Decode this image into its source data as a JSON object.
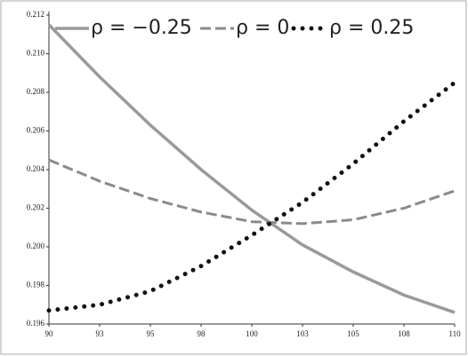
{
  "chart_data": {
    "type": "line",
    "x": [
      90,
      92.5,
      95,
      97.5,
      100,
      102.5,
      105,
      107.5,
      110
    ],
    "series": [
      {
        "name": "ρ = −0.25",
        "color": "#9a9a9a",
        "style": "solid",
        "values": [
          0.2115,
          0.2088,
          0.2063,
          0.204,
          0.2019,
          0.2001,
          0.1987,
          0.1975,
          0.1966
        ]
      },
      {
        "name": "ρ = 0",
        "color": "#8a8a8a",
        "style": "dashed",
        "values": [
          0.2045,
          0.2034,
          0.2025,
          0.2018,
          0.2013,
          0.2012,
          0.2014,
          0.202,
          0.2029
        ]
      },
      {
        "name": "ρ = 0.25",
        "color": "#111111",
        "style": "dotted",
        "values": [
          0.1967,
          0.197,
          0.1977,
          0.199,
          0.2006,
          0.2023,
          0.2043,
          0.2065,
          0.2085
        ]
      }
    ],
    "xlim": [
      90,
      110
    ],
    "xticks": [
      90,
      {
        "value": 92.5,
        "label": "93"
      },
      95,
      {
        "value": 97.5,
        "label": "98"
      },
      100,
      {
        "value": 102.5,
        "label": "103"
      },
      105,
      {
        "value": 107.5,
        "label": "108"
      },
      110
    ],
    "ylim": [
      0.196,
      0.212
    ],
    "yticks": [
      0.196,
      0.198,
      {
        "value": 0.2,
        "label": "0.200"
      },
      0.202,
      0.204,
      0.206,
      0.208,
      {
        "value": 0.21,
        "label": "0.210"
      },
      0.212
    ],
    "legend": "top"
  }
}
